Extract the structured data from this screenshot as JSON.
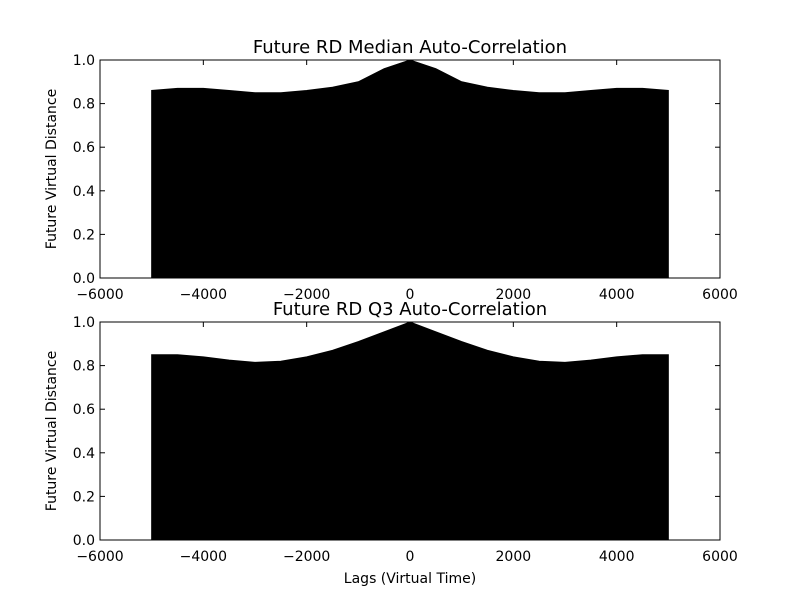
{
  "figure": {
    "background": "#ffffff",
    "fill_color": "#000000"
  },
  "chart_data": [
    {
      "type": "area",
      "title": "Future RD Median Auto-Correlation",
      "xlabel": "",
      "ylabel": "Future Virtual Distance",
      "xlim": [
        -6000,
        6000
      ],
      "ylim": [
        0,
        1.0
      ],
      "xticks": [
        -6000,
        -4000,
        -2000,
        0,
        2000,
        4000,
        6000
      ],
      "yticks": [
        0.0,
        0.2,
        0.4,
        0.6,
        0.8,
        1.0
      ],
      "xtick_labels": [
        "−6000",
        "−4000",
        "−2000",
        "0",
        "2000",
        "4000",
        "6000"
      ],
      "ytick_labels": [
        "0.0",
        "0.2",
        "0.4",
        "0.6",
        "0.8",
        "1.0"
      ],
      "grid": false,
      "series": [
        {
          "x": [
            -5000,
            -4500,
            -4000,
            -3500,
            -3000,
            -2500,
            -2000,
            -1500,
            -1000,
            -500,
            0,
            500,
            1000,
            1500,
            2000,
            2500,
            3000,
            3500,
            4000,
            4500,
            5000
          ],
          "y": [
            0.86,
            0.87,
            0.87,
            0.86,
            0.85,
            0.85,
            0.86,
            0.875,
            0.9,
            0.96,
            1.0,
            0.96,
            0.9,
            0.875,
            0.86,
            0.85,
            0.85,
            0.86,
            0.87,
            0.87,
            0.86
          ]
        }
      ]
    },
    {
      "type": "area",
      "title": "Future RD Q3 Auto-Correlation",
      "xlabel": "Lags (Virtual Time)",
      "ylabel": "Future Virtual Distance",
      "xlim": [
        -6000,
        6000
      ],
      "ylim": [
        0,
        1.0
      ],
      "xticks": [
        -6000,
        -4000,
        -2000,
        0,
        2000,
        4000,
        6000
      ],
      "yticks": [
        0.0,
        0.2,
        0.4,
        0.6,
        0.8,
        1.0
      ],
      "xtick_labels": [
        "−6000",
        "−4000",
        "−2000",
        "0",
        "2000",
        "4000",
        "6000"
      ],
      "ytick_labels": [
        "0.0",
        "0.2",
        "0.4",
        "0.6",
        "0.8",
        "1.0"
      ],
      "grid": false,
      "series": [
        {
          "x": [
            -5000,
            -4500,
            -4000,
            -3500,
            -3000,
            -2500,
            -2000,
            -1500,
            -1000,
            -500,
            0,
            500,
            1000,
            1500,
            2000,
            2500,
            3000,
            3500,
            4000,
            4500,
            5000
          ],
          "y": [
            0.85,
            0.85,
            0.84,
            0.825,
            0.815,
            0.82,
            0.84,
            0.87,
            0.91,
            0.955,
            1.0,
            0.955,
            0.91,
            0.87,
            0.84,
            0.82,
            0.815,
            0.825,
            0.84,
            0.85,
            0.85
          ]
        }
      ]
    }
  ]
}
